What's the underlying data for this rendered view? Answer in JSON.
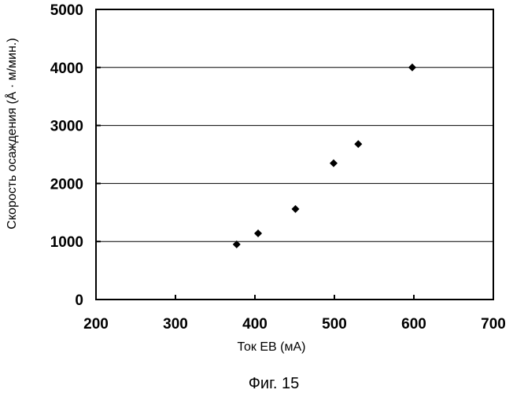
{
  "chart_data": {
    "type": "scatter",
    "xlabel": "Ток ЕВ (мА)",
    "ylabel": "Скорость осаждения (Å · м/мин.)",
    "xlim": [
      200,
      700
    ],
    "ylim": [
      0,
      5000
    ],
    "x_ticks": [
      200,
      300,
      400,
      500,
      600,
      700
    ],
    "y_ticks": [
      0,
      1000,
      2000,
      3000,
      4000,
      5000
    ],
    "grid": "horizontal",
    "marker": "diamond",
    "points": [
      {
        "x": 377,
        "y": 950
      },
      {
        "x": 404,
        "y": 1140
      },
      {
        "x": 451,
        "y": 1560
      },
      {
        "x": 499,
        "y": 2350
      },
      {
        "x": 530,
        "y": 2680
      },
      {
        "x": 598,
        "y": 4000
      }
    ]
  },
  "caption": "Фиг. 15"
}
